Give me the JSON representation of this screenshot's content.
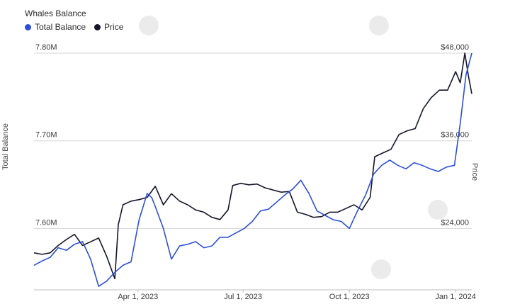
{
  "chart_data": {
    "type": "line",
    "title": "Whales Balance",
    "legend": [
      {
        "name": "Total Balance",
        "color": "#2d4fd8"
      },
      {
        "name": "Price",
        "color": "#15152b"
      }
    ],
    "ylabel_left": "Total Balance",
    "ylabel_right": "Price",
    "y_left_ticks": [
      "7.80M",
      "7.70M",
      "7.60M"
    ],
    "y_left_range": [
      7.53,
      7.8
    ],
    "y_right_ticks": [
      "$48,000",
      "$36,000",
      "$24,000"
    ],
    "y_right_range": [
      16000,
      48000
    ],
    "x_ticks": [
      "Apr 1, 2023",
      "Jul 1, 2023",
      "Oct 1, 2023",
      "Jan 1, 2024"
    ],
    "x_range": [
      "2023-01-01",
      "2024-01-15"
    ],
    "grid": "horizontal",
    "legend_placement": "top-left",
    "series": [
      {
        "name": "Total Balance",
        "x": [
          "2023-01-01",
          "2023-01-08",
          "2023-01-15",
          "2023-01-22",
          "2023-01-29",
          "2023-02-05",
          "2023-02-12",
          "2023-02-19",
          "2023-02-26",
          "2023-03-05",
          "2023-03-12",
          "2023-03-19",
          "2023-03-26",
          "2023-04-02",
          "2023-04-09",
          "2023-04-13",
          "2023-04-16",
          "2023-04-23",
          "2023-04-30",
          "2023-05-07",
          "2023-05-14",
          "2023-05-21",
          "2023-05-28",
          "2023-06-04",
          "2023-06-11",
          "2023-06-18",
          "2023-06-25",
          "2023-07-02",
          "2023-07-09",
          "2023-07-16",
          "2023-07-23",
          "2023-07-30",
          "2023-08-06",
          "2023-08-13",
          "2023-08-20",
          "2023-08-27",
          "2023-09-03",
          "2023-09-10",
          "2023-09-17",
          "2023-09-24",
          "2023-10-01",
          "2023-10-08",
          "2023-10-15",
          "2023-10-22",
          "2023-10-29",
          "2023-11-05",
          "2023-11-12",
          "2023-11-19",
          "2023-11-26",
          "2023-12-03",
          "2023-12-10",
          "2023-12-17",
          "2023-12-24",
          "2023-12-31",
          "2024-01-05",
          "2024-01-10",
          "2024-01-15"
        ],
        "values": [
          7.558,
          7.563,
          7.567,
          7.578,
          7.575,
          7.582,
          7.585,
          7.565,
          7.534,
          7.54,
          7.55,
          7.558,
          7.562,
          7.61,
          7.64,
          7.635,
          7.625,
          7.6,
          7.565,
          7.58,
          7.582,
          7.585,
          7.578,
          7.58,
          7.59,
          7.59,
          7.595,
          7.6,
          7.608,
          7.62,
          7.622,
          7.63,
          7.638,
          7.645,
          7.655,
          7.64,
          7.62,
          7.615,
          7.61,
          7.608,
          7.6,
          7.62,
          7.638,
          7.662,
          7.672,
          7.678,
          7.672,
          7.668,
          7.675,
          7.672,
          7.668,
          7.665,
          7.67,
          7.672,
          7.72,
          7.775,
          7.8
        ]
      },
      {
        "name": "Price",
        "x": [
          "2023-01-01",
          "2023-01-08",
          "2023-01-15",
          "2023-01-22",
          "2023-01-29",
          "2023-02-05",
          "2023-02-12",
          "2023-02-19",
          "2023-02-26",
          "2023-03-05",
          "2023-03-12",
          "2023-03-15",
          "2023-03-19",
          "2023-03-26",
          "2023-04-02",
          "2023-04-09",
          "2023-04-16",
          "2023-04-23",
          "2023-04-30",
          "2023-05-07",
          "2023-05-14",
          "2023-05-21",
          "2023-05-28",
          "2023-06-04",
          "2023-06-11",
          "2023-06-18",
          "2023-06-22",
          "2023-06-29",
          "2023-07-06",
          "2023-07-13",
          "2023-07-20",
          "2023-07-27",
          "2023-08-03",
          "2023-08-10",
          "2023-08-17",
          "2023-08-24",
          "2023-08-31",
          "2023-09-07",
          "2023-09-14",
          "2023-09-21",
          "2023-09-28",
          "2023-10-05",
          "2023-10-12",
          "2023-10-19",
          "2023-10-23",
          "2023-10-30",
          "2023-11-06",
          "2023-11-13",
          "2023-11-20",
          "2023-11-27",
          "2023-12-04",
          "2023-12-11",
          "2023-12-18",
          "2023-12-25",
          "2024-01-01",
          "2024-01-05",
          "2024-01-09",
          "2024-01-12",
          "2024-01-15"
        ],
        "values": [
          21000,
          20800,
          21000,
          22000,
          22800,
          23500,
          22000,
          22500,
          23000,
          20500,
          17500,
          24800,
          27500,
          28000,
          28200,
          28500,
          30000,
          27500,
          29000,
          28000,
          27500,
          26800,
          26500,
          25800,
          25500,
          26800,
          30100,
          30400,
          30200,
          30300,
          29800,
          29500,
          29200,
          29300,
          26500,
          26200,
          25800,
          25900,
          26500,
          26500,
          27000,
          27500,
          26800,
          28500,
          34000,
          34500,
          35000,
          37000,
          37500,
          37800,
          40500,
          42000,
          43000,
          43000,
          45500,
          44000,
          48000,
          45000,
          42500
        ]
      }
    ]
  }
}
